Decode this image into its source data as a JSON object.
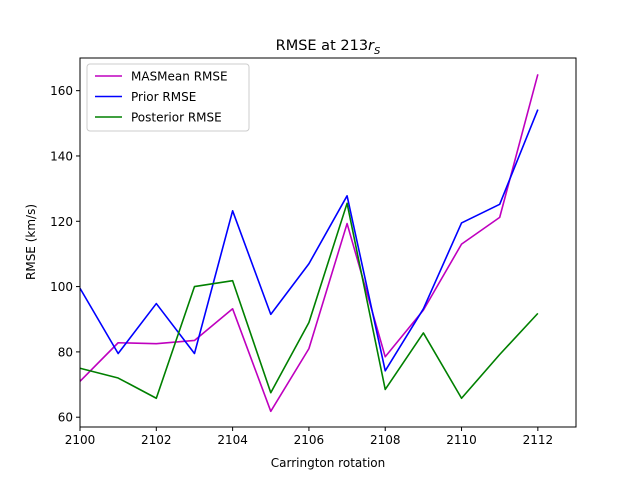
{
  "chart_data": {
    "type": "line",
    "title_main": "RMSE at 213",
    "title_sym": "r",
    "title_sub": "S",
    "xlabel": "Carrington rotation",
    "ylabel": "RMSE (km/s)",
    "xlim": [
      2100,
      2113
    ],
    "ylim": [
      57,
      170
    ],
    "xticks": [
      2100,
      2102,
      2104,
      2106,
      2108,
      2110,
      2112
    ],
    "yticks": [
      60,
      80,
      100,
      120,
      140,
      160
    ],
    "grid": false,
    "legend_position": "upper-left",
    "x": [
      2100,
      2101,
      2102,
      2103,
      2104,
      2105,
      2106,
      2107,
      2108,
      2109,
      2110,
      2111,
      2112
    ],
    "series": [
      {
        "name": "MASMean RMSE",
        "color": "#bf00bf",
        "values": [
          71,
          82.8,
          82.5,
          83.5,
          93.2,
          61.8,
          81,
          119.3,
          78.5,
          92.8,
          113,
          121.2,
          165
        ]
      },
      {
        "name": "Prior RMSE",
        "color": "#0000ff",
        "values": [
          99.5,
          79.5,
          94.8,
          79.5,
          123.2,
          91.5,
          107,
          127.8,
          74.2,
          93.2,
          119.5,
          125.2,
          154.2
        ]
      },
      {
        "name": "Posterior RMSE",
        "color": "#008000",
        "values": [
          75,
          72,
          65.8,
          100,
          101.8,
          67.5,
          89,
          125.5,
          68.5,
          85.8,
          65.8,
          79.2,
          91.8
        ]
      }
    ]
  }
}
